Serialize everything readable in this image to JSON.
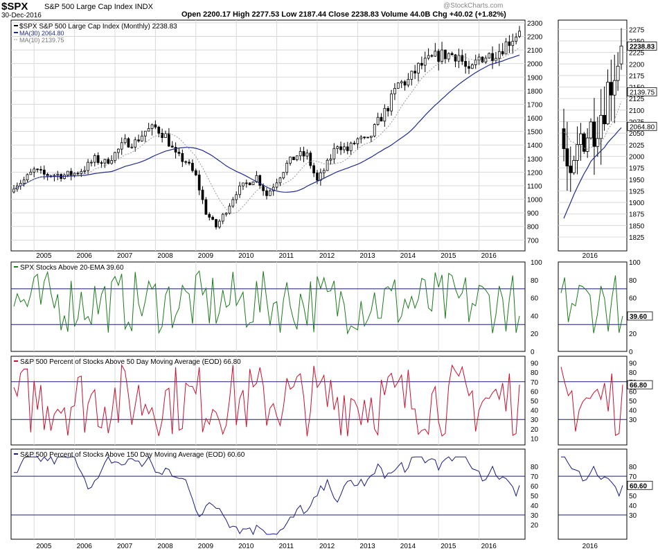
{
  "header": {
    "symbol": "$SPX",
    "name": "S&P 500 Large Cap Index INDX",
    "date": "30-Dec-2016",
    "quote": "Open 2200.17   High 2277.53   Low 2187.44   Close 2238.83   Volume 44.0B   Chg +40.02 (+1.82%)",
    "watermark": "@StockCharts.com"
  },
  "colors": {
    "frame": "#000000",
    "grid": "#d8d8d8",
    "ma30": "#1f2a8c",
    "ma10": "#999999",
    "green": "#1b7a1b",
    "red": "#c8102e",
    "navy": "#1a1a80",
    "hline": "#1a1a6e"
  },
  "chart_data": [
    {
      "type": "candlestick",
      "legend": [
        "$SPX S&P 500 Large Cap Index (Monthly) 2238.83",
        "MA(30) 2064.80",
        "MA(10) 2139.75"
      ],
      "x_labels": [
        "2005",
        "2006",
        "2007",
        "2008",
        "2009",
        "2010",
        "2011",
        "2012",
        "2013",
        "2014",
        "2015",
        "2016"
      ],
      "y_ticks": [
        700,
        800,
        900,
        1000,
        1100,
        1200,
        1300,
        1400,
        1500,
        1600,
        1700,
        1800,
        1900,
        2000,
        2100,
        2200,
        2300
      ],
      "ylim": [
        620,
        2320
      ],
      "x_start": "2004-07",
      "last_value_label": "2238.83",
      "ma30_label": "2064.80",
      "ma10_label": "2139.75",
      "quarterly_close": [
        1103,
        1140,
        1212,
        1180,
        1181,
        1178,
        1191,
        1228,
        1294,
        1270,
        1336,
        1418,
        1421,
        1503,
        1527,
        1468,
        1322,
        1280,
        1166,
        903,
        798,
        919,
        1057,
        1115,
        1169,
        1031,
        1141,
        1257,
        1326,
        1321,
        1131,
        1258,
        1408,
        1362,
        1440,
        1426,
        1569,
        1682,
        1848,
        1872,
        1972,
        2018,
        2059,
        2068,
        2063,
        1920,
        2044,
        2060,
        2099,
        2168,
        2239
      ]
    },
    {
      "type": "line",
      "title": "SPX Stocks Above 20-EMA 39.60",
      "y_ticks": [
        0,
        20,
        40,
        60,
        80,
        100
      ],
      "ylim": [
        0,
        100
      ],
      "hlines": [
        30,
        70
      ],
      "last_value_label": "39.60"
    },
    {
      "type": "line",
      "title": "S&P 500 Percent of Stocks Above 50 Day Moving Average (EOD) 66.80",
      "y_ticks": [
        10,
        20,
        30,
        40,
        50,
        60,
        70,
        80,
        90
      ],
      "ylim": [
        3,
        97
      ],
      "hlines": [
        30,
        70
      ],
      "last_value_label": "66.80"
    },
    {
      "type": "line",
      "title": "S&P 500 Percent of Stocks Above 150 Day Moving Average (EOD) 60.60",
      "y_ticks": [
        20,
        30,
        40,
        50,
        60,
        70,
        80
      ],
      "ylim": [
        5,
        98
      ],
      "hlines": [
        30,
        70
      ],
      "last_value_label": "60.60"
    }
  ],
  "zoom": {
    "x_labels": [
      "2016"
    ],
    "price_ticks": [
      1825,
      1850,
      1875,
      1900,
      1925,
      1950,
      1975,
      2000,
      2025,
      2050,
      2075,
      2100,
      2125,
      2150,
      2175,
      2200,
      2225,
      2250,
      2275
    ],
    "price_ylim": [
      1795,
      2295
    ],
    "ind1_ticks": [
      0,
      20,
      40,
      60,
      80,
      100
    ],
    "ind2_ticks": [
      30,
      40,
      50,
      60,
      70,
      80,
      90
    ],
    "ind3_ticks": [
      30,
      40,
      50,
      60,
      70,
      80
    ]
  }
}
